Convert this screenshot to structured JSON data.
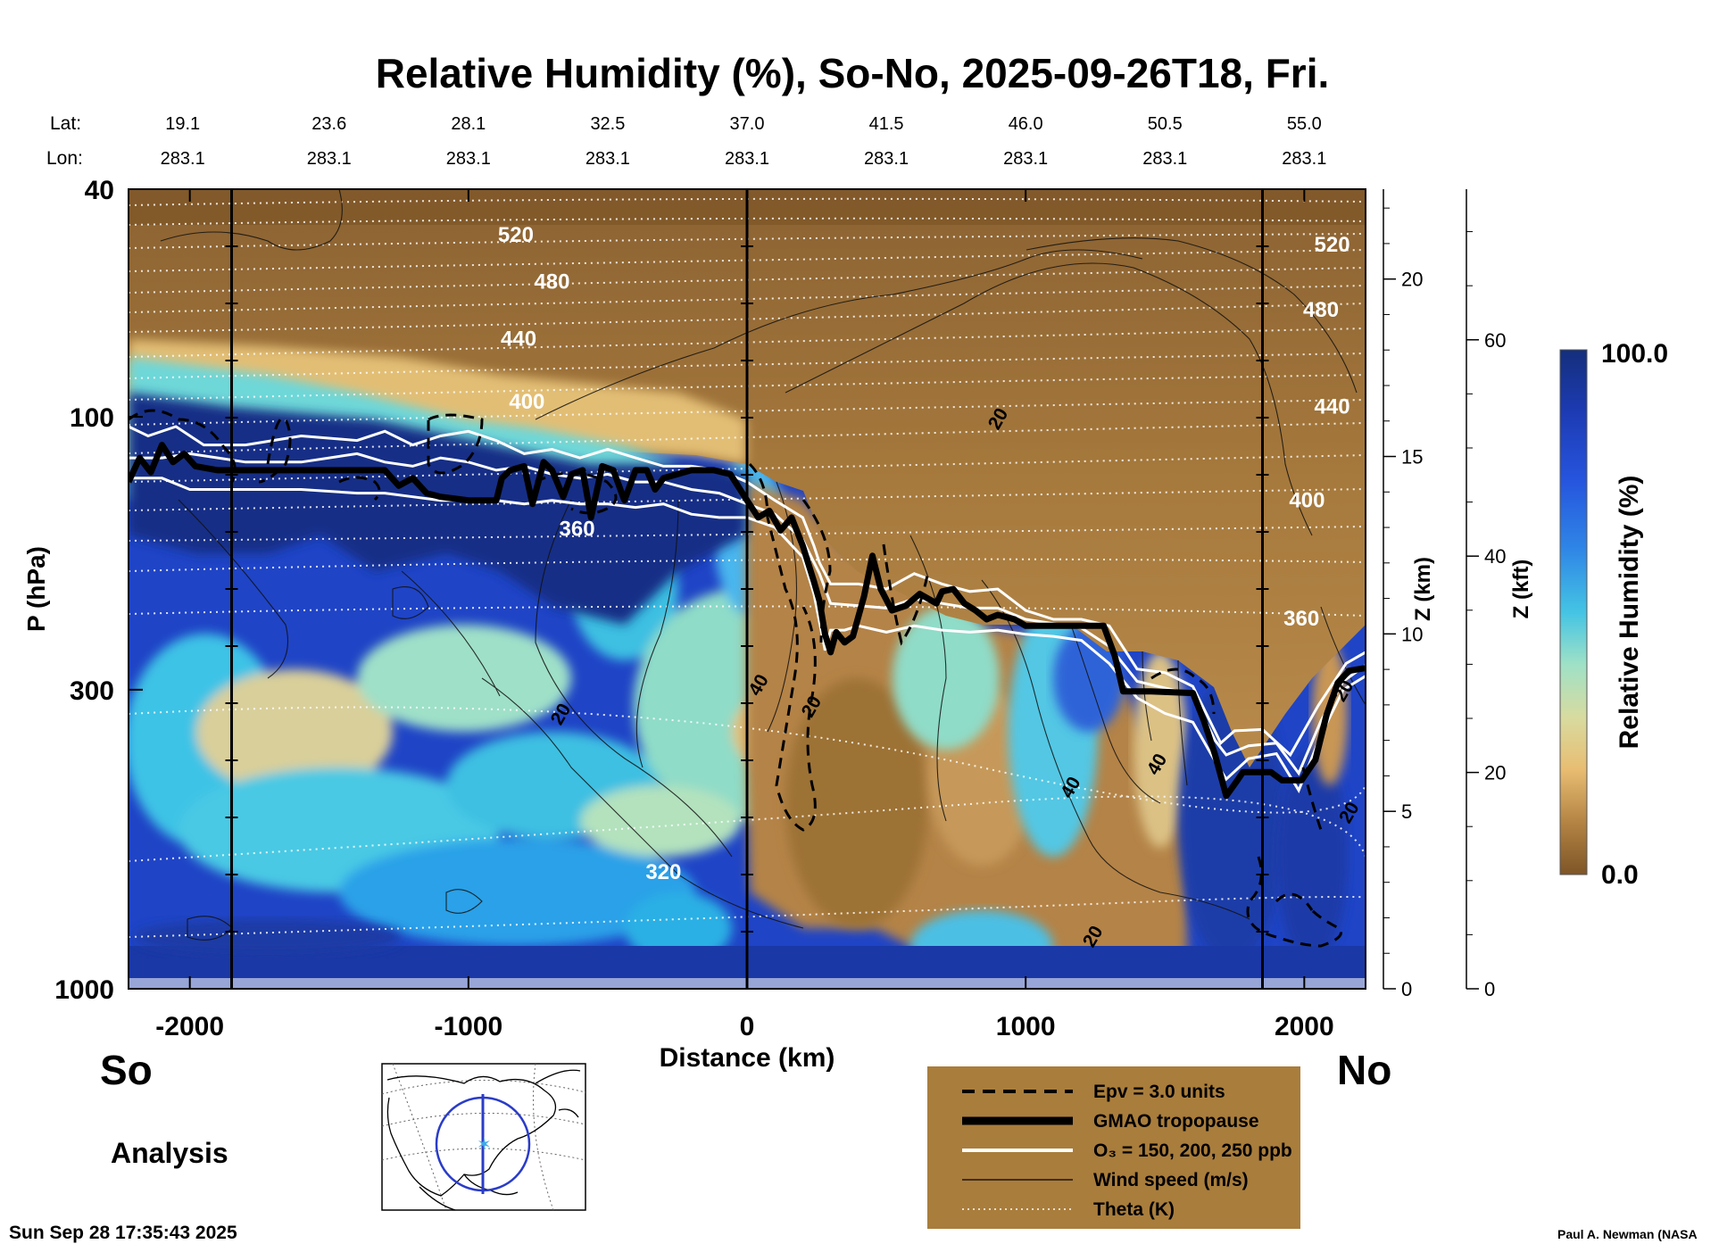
{
  "chart_data": {
    "type": "contour-cross-section",
    "title": "Relative Humidity (%), So-No, 2025-09-26T18, Fri.",
    "header": {
      "lat_label": "Lat:",
      "lon_label": "Lon:",
      "lat": [
        "19.1",
        "23.6",
        "28.1",
        "32.5",
        "37.0",
        "41.5",
        "46.0",
        "50.5",
        "55.0"
      ],
      "lon": [
        "283.1",
        "283.1",
        "283.1",
        "283.1",
        "283.1",
        "283.1",
        "283.1",
        "283.1",
        "283.1"
      ],
      "distance_km": [
        -2000,
        -1500,
        -1000,
        -500,
        0,
        500,
        1000,
        1500,
        2000
      ]
    },
    "xaxis": {
      "label": "Distance (km)",
      "range": [
        -2220,
        2220
      ],
      "ticks": [
        -2000,
        -1000,
        0,
        1000,
        2000
      ],
      "tick_labels": [
        "-2000",
        "-1000",
        "0",
        "1000",
        "2000"
      ]
    },
    "yaxis_left": {
      "label": "P (hPa)",
      "scale": "log",
      "range": [
        1000,
        40
      ],
      "tick_values": [
        40,
        100,
        300,
        1000
      ],
      "tick_labels": [
        "40",
        "100",
        "300",
        "1000"
      ]
    },
    "yaxis_z_km": {
      "label": "Z (km)",
      "ticks": [
        0,
        5,
        10,
        15,
        20
      ],
      "tick_labels": [
        "0",
        "5",
        "10",
        "15",
        "20"
      ]
    },
    "yaxis_z_kft": {
      "label": "Z (kft)",
      "ticks": [
        0,
        20,
        40,
        60
      ],
      "tick_labels": [
        "0",
        "20",
        "40",
        "60"
      ]
    },
    "colorbar": {
      "label": "Relative Humidity (%)",
      "min_label": "0.0",
      "max_label": "100.0",
      "min": 0,
      "max": 100
    },
    "vertical_markers_km": [
      -1850,
      0,
      1850
    ],
    "tropopause": {
      "name": "GMAO tropopause",
      "points": [
        [
          -2220,
          130
        ],
        [
          -2180,
          118
        ],
        [
          -2140,
          125
        ],
        [
          -2100,
          112
        ],
        [
          -2060,
          120
        ],
        [
          -2020,
          116
        ],
        [
          -1980,
          122
        ],
        [
          -1900,
          124
        ],
        [
          -1800,
          124
        ],
        [
          -1600,
          124
        ],
        [
          -1400,
          124
        ],
        [
          -1300,
          124
        ],
        [
          -1250,
          132
        ],
        [
          -1200,
          128
        ],
        [
          -1150,
          136
        ],
        [
          -1100,
          138
        ],
        [
          -1000,
          140
        ],
        [
          -900,
          140
        ],
        [
          -880,
          128
        ],
        [
          -850,
          124
        ],
        [
          -800,
          122
        ],
        [
          -770,
          142
        ],
        [
          -730,
          120
        ],
        [
          -700,
          124
        ],
        [
          -660,
          138
        ],
        [
          -630,
          126
        ],
        [
          -590,
          124
        ],
        [
          -560,
          150
        ],
        [
          -520,
          122
        ],
        [
          -480,
          124
        ],
        [
          -440,
          140
        ],
        [
          -400,
          124
        ],
        [
          -360,
          124
        ],
        [
          -330,
          134
        ],
        [
          -300,
          128
        ],
        [
          -200,
          124
        ],
        [
          -120,
          124
        ],
        [
          -60,
          126
        ],
        [
          0,
          140
        ],
        [
          40,
          150
        ],
        [
          80,
          146
        ],
        [
          120,
          158
        ],
        [
          160,
          150
        ],
        [
          200,
          168
        ],
        [
          240,
          194
        ],
        [
          260,
          210
        ],
        [
          280,
          240
        ],
        [
          300,
          258
        ],
        [
          320,
          238
        ],
        [
          350,
          248
        ],
        [
          380,
          242
        ],
        [
          420,
          206
        ],
        [
          450,
          175
        ],
        [
          480,
          200
        ],
        [
          520,
          218
        ],
        [
          570,
          214
        ],
        [
          620,
          204
        ],
        [
          680,
          212
        ],
        [
          700,
          202
        ],
        [
          740,
          200
        ],
        [
          780,
          212
        ],
        [
          820,
          218
        ],
        [
          860,
          226
        ],
        [
          900,
          222
        ],
        [
          960,
          226
        ],
        [
          1000,
          232
        ],
        [
          1100,
          232
        ],
        [
          1280,
          232
        ],
        [
          1320,
          262
        ],
        [
          1350,
          302
        ],
        [
          1450,
          302
        ],
        [
          1600,
          304
        ],
        [
          1640,
          340
        ],
        [
          1680,
          390
        ],
        [
          1720,
          460
        ],
        [
          1760,
          432
        ],
        [
          1780,
          418
        ],
        [
          1880,
          418
        ],
        [
          1920,
          432
        ],
        [
          1990,
          432
        ],
        [
          2040,
          398
        ],
        [
          2080,
          332
        ],
        [
          2120,
          292
        ],
        [
          2160,
          278
        ],
        [
          2220,
          275
        ]
      ]
    },
    "ozone_150_ppb": {
      "name": "O3 = 150 ppb",
      "points": [
        [
          -2220,
          104
        ],
        [
          -2150,
          108
        ],
        [
          -2050,
          104
        ],
        [
          -1950,
          112
        ],
        [
          -1800,
          112
        ],
        [
          -1600,
          108
        ],
        [
          -1400,
          110
        ],
        [
          -1300,
          106
        ],
        [
          -1200,
          112
        ],
        [
          -1100,
          108
        ],
        [
          -1000,
          106
        ],
        [
          -900,
          110
        ],
        [
          -800,
          116
        ],
        [
          -700,
          114
        ],
        [
          -600,
          118
        ],
        [
          -500,
          114
        ],
        [
          -400,
          118
        ],
        [
          -300,
          122
        ],
        [
          -200,
          122
        ],
        [
          -100,
          124
        ],
        [
          0,
          130
        ],
        [
          100,
          140
        ],
        [
          200,
          150
        ],
        [
          240,
          168
        ],
        [
          260,
          180
        ],
        [
          300,
          196
        ],
        [
          400,
          196
        ],
        [
          500,
          200
        ],
        [
          600,
          188
        ],
        [
          700,
          196
        ],
        [
          800,
          202
        ],
        [
          900,
          200
        ],
        [
          1000,
          218
        ],
        [
          1100,
          226
        ],
        [
          1200,
          226
        ],
        [
          1300,
          232
        ],
        [
          1400,
          276
        ],
        [
          1500,
          280
        ],
        [
          1600,
          296
        ],
        [
          1680,
          355
        ],
        [
          1700,
          372
        ],
        [
          1750,
          354
        ],
        [
          1850,
          352
        ],
        [
          1950,
          390
        ],
        [
          2050,
          320
        ],
        [
          2150,
          270
        ],
        [
          2220,
          258
        ]
      ]
    },
    "ozone_200_ppb": {
      "name": "O3 = 200 ppb",
      "points": [
        [
          -2220,
          118
        ],
        [
          -2100,
          118
        ],
        [
          -2000,
          116
        ],
        [
          -1800,
          120
        ],
        [
          -1600,
          120
        ],
        [
          -1400,
          116
        ],
        [
          -1300,
          120
        ],
        [
          -1200,
          122
        ],
        [
          -1100,
          118
        ],
        [
          -1000,
          120
        ],
        [
          -900,
          124
        ],
        [
          -800,
          122
        ],
        [
          -700,
          126
        ],
        [
          -600,
          128
        ],
        [
          -500,
          126
        ],
        [
          -400,
          130
        ],
        [
          -300,
          130
        ],
        [
          -200,
          134
        ],
        [
          -100,
          136
        ],
        [
          0,
          142
        ],
        [
          100,
          148
        ],
        [
          200,
          164
        ],
        [
          260,
          188
        ],
        [
          300,
          212
        ],
        [
          400,
          214
        ],
        [
          500,
          216
        ],
        [
          600,
          208
        ],
        [
          700,
          212
        ],
        [
          800,
          216
        ],
        [
          900,
          216
        ],
        [
          1000,
          226
        ],
        [
          1100,
          230
        ],
        [
          1200,
          234
        ],
        [
          1300,
          252
        ],
        [
          1400,
          290
        ],
        [
          1500,
          298
        ],
        [
          1600,
          306
        ],
        [
          1680,
          368
        ],
        [
          1720,
          390
        ],
        [
          1800,
          376
        ],
        [
          1900,
          372
        ],
        [
          1980,
          420
        ],
        [
          2060,
          340
        ],
        [
          2140,
          290
        ],
        [
          2220,
          272
        ]
      ]
    },
    "ozone_250_ppb": {
      "name": "O3 = 250 ppb",
      "points": [
        [
          -2220,
          128
        ],
        [
          -2100,
          128
        ],
        [
          -2000,
          134
        ],
        [
          -1800,
          134
        ],
        [
          -1600,
          134
        ],
        [
          -1400,
          136
        ],
        [
          -1300,
          136
        ],
        [
          -1200,
          138
        ],
        [
          -1100,
          140
        ],
        [
          -1000,
          140
        ],
        [
          -900,
          140
        ],
        [
          -800,
          142
        ],
        [
          -700,
          140
        ],
        [
          -600,
          142
        ],
        [
          -500,
          142
        ],
        [
          -400,
          144
        ],
        [
          -300,
          142
        ],
        [
          -200,
          148
        ],
        [
          -100,
          150
        ],
        [
          0,
          150
        ],
        [
          100,
          156
        ],
        [
          200,
          176
        ],
        [
          240,
          204
        ],
        [
          280,
          256
        ],
        [
          300,
          236
        ],
        [
          350,
          236
        ],
        [
          400,
          232
        ],
        [
          500,
          238
        ],
        [
          600,
          232
        ],
        [
          700,
          236
        ],
        [
          800,
          238
        ],
        [
          900,
          236
        ],
        [
          1000,
          240
        ],
        [
          1100,
          242
        ],
        [
          1200,
          246
        ],
        [
          1300,
          270
        ],
        [
          1400,
          310
        ],
        [
          1500,
          330
        ],
        [
          1600,
          342
        ],
        [
          1680,
          400
        ],
        [
          1720,
          430
        ],
        [
          1800,
          396
        ],
        [
          1900,
          388
        ],
        [
          1980,
          450
        ],
        [
          2060,
          360
        ],
        [
          2140,
          300
        ],
        [
          2220,
          284
        ]
      ]
    },
    "theta_labels": [
      {
        "value": "520",
        "x_km": -830,
        "p_hpa": 48
      },
      {
        "value": "480",
        "x_km": -700,
        "p_hpa": 58
      },
      {
        "value": "440",
        "x_km": -820,
        "p_hpa": 73
      },
      {
        "value": "400",
        "x_km": -790,
        "p_hpa": 94
      },
      {
        "value": "360",
        "x_km": -610,
        "p_hpa": 157
      },
      {
        "value": "320",
        "x_km": -300,
        "p_hpa": 625
      },
      {
        "value": "520",
        "x_km": 2100,
        "p_hpa": 50
      },
      {
        "value": "480",
        "x_km": 2060,
        "p_hpa": 65
      },
      {
        "value": "440",
        "x_km": 2100,
        "p_hpa": 96
      },
      {
        "value": "400",
        "x_km": 2010,
        "p_hpa": 140
      },
      {
        "value": "360",
        "x_km": 1990,
        "p_hpa": 225
      }
    ],
    "wind_labels": [
      {
        "value": "20",
        "x_km": 920,
        "p_hpa": 102
      },
      {
        "value": "20",
        "x_km": -650,
        "p_hpa": 335
      },
      {
        "value": "40",
        "x_km": 60,
        "p_hpa": 298
      },
      {
        "value": "20",
        "x_km": 250,
        "p_hpa": 325
      },
      {
        "value": "40",
        "x_km": 1180,
        "p_hpa": 450
      },
      {
        "value": "40",
        "x_km": 1490,
        "p_hpa": 410
      },
      {
        "value": "20",
        "x_km": 1260,
        "p_hpa": 820
      },
      {
        "value": "20",
        "x_km": 2180,
        "p_hpa": 498
      },
      {
        "value": "20",
        "x_km": 2160,
        "p_hpa": 305
      }
    ],
    "legend": [
      {
        "style": "dashed",
        "label": "Epv = 3.0 units"
      },
      {
        "style": "thick",
        "label": "GMAO tropopause"
      },
      {
        "style": "white",
        "label": "O₃ = 150, 200, 250 ppb"
      },
      {
        "style": "thin",
        "label": "Wind speed (m/s)"
      },
      {
        "style": "dotted",
        "label": "Theta (K)"
      }
    ],
    "colors": {
      "moist": "#0d2f85",
      "mid_blue": "#2a3fc8",
      "cyan": "#3fc8e6",
      "dry": "#82572a",
      "tan": "#c89a56",
      "legend_bg": "#a97d3c"
    }
  },
  "labels": {
    "south": "So",
    "north": "No",
    "analysis": "Analysis",
    "timestamp": "Sun Sep 28 17:35:43 2025",
    "credit": "Paul A. Newman (NASA"
  }
}
